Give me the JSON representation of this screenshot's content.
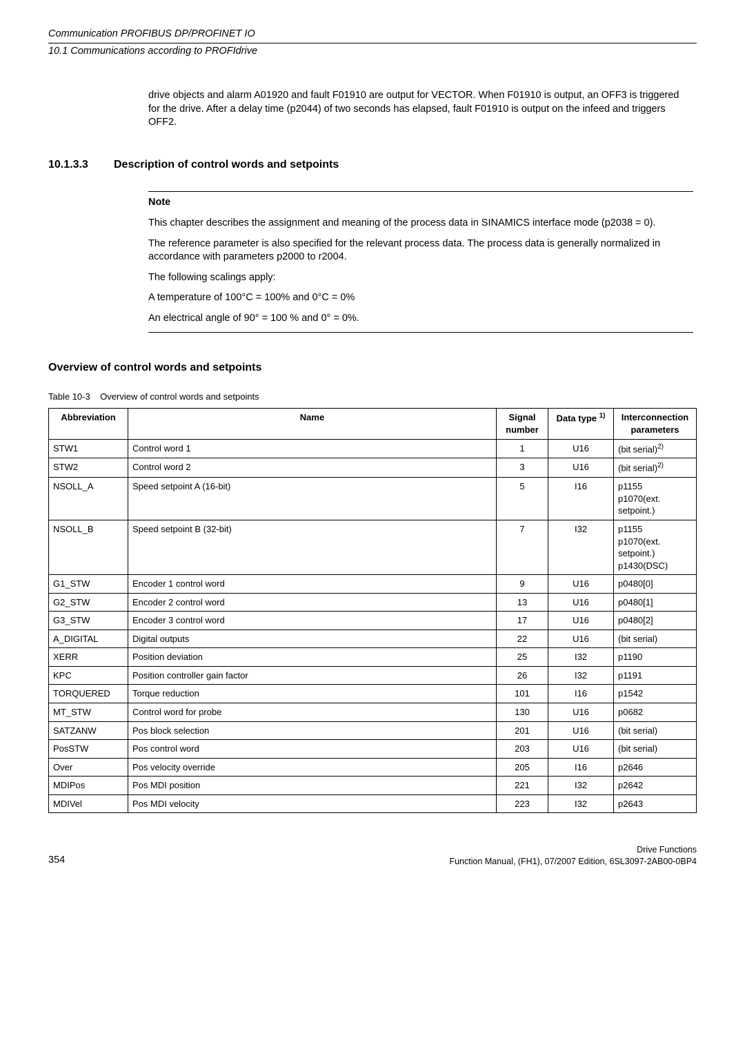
{
  "header": {
    "title": "Communication PROFIBUS DP/PROFINET IO",
    "subtitle": "10.1 Communications according to PROFIdrive"
  },
  "intro_para": "drive objects and alarm A01920 and fault F01910 are output for VECTOR. When F01910 is output, an OFF3 is triggered for the drive. After a delay time (p2044) of two seconds has elapsed, fault F01910 is output on the infeed and triggers OFF2.",
  "section": {
    "number": "10.1.3.3",
    "title": "Description of control words and setpoints"
  },
  "note": {
    "label": "Note",
    "p1": "This chapter describes the assignment and meaning of the process data in SINAMICS interface mode (p2038 = 0).",
    "p2": "The reference parameter is also specified for the relevant process data. The process data is generally normalized in accordance with parameters p2000 to r2004.",
    "p3": "The following scalings apply:",
    "p4": "A temperature of 100°C = 100% and 0°C = 0%",
    "p5": "An electrical angle of 90° = 100 % and 0° = 0%."
  },
  "overview_heading": "Overview of control words and setpoints",
  "table": {
    "caption_prefix": "Table 10-3",
    "caption_text": "Overview of control words and setpoints",
    "headers": {
      "abbr": "Abbreviation",
      "name": "Name",
      "signal": "Signal number",
      "dtype_pre": "Data type ",
      "dtype_sup": "1)",
      "inter": "Interconnection parameters"
    },
    "rows": [
      {
        "abbr": "STW1",
        "name": "Control word 1",
        "sig": "1",
        "dt": "U16",
        "ip": "(bit serial)",
        "ip_sup": "2)"
      },
      {
        "abbr": "STW2",
        "name": "Control word 2",
        "sig": "3",
        "dt": "U16",
        "ip": "(bit serial)",
        "ip_sup": "2)"
      },
      {
        "abbr": "NSOLL_A",
        "name": "Speed setpoint A (16-bit)",
        "sig": "5",
        "dt": "I16",
        "ip": "p1155\np1070(ext. setpoint.)"
      },
      {
        "abbr": "NSOLL_B",
        "name": "Speed setpoint B (32-bit)",
        "sig": "7",
        "dt": "I32",
        "ip": "p1155\np1070(ext. setpoint.)\np1430(DSC)"
      },
      {
        "abbr": "G1_STW",
        "name": "Encoder 1 control word",
        "sig": "9",
        "dt": "U16",
        "ip": "p0480[0]"
      },
      {
        "abbr": "G2_STW",
        "name": "Encoder 2 control word",
        "sig": "13",
        "dt": "U16",
        "ip": "p0480[1]"
      },
      {
        "abbr": "G3_STW",
        "name": "Encoder 3 control word",
        "sig": "17",
        "dt": "U16",
        "ip": "p0480[2]"
      },
      {
        "abbr": "A_DIGITAL",
        "name": "Digital outputs",
        "sig": "22",
        "dt": "U16",
        "ip": "(bit serial)"
      },
      {
        "abbr": "XERR",
        "name": "Position deviation",
        "sig": "25",
        "dt": "I32",
        "ip": "p1190"
      },
      {
        "abbr": "KPC",
        "name": "Position controller gain factor",
        "sig": "26",
        "dt": "I32",
        "ip": "p1191"
      },
      {
        "abbr": "TORQUERED",
        "name": "Torque reduction",
        "sig": "101",
        "dt": "I16",
        "ip": "p1542"
      },
      {
        "abbr": "MT_STW",
        "name": "Control word for probe",
        "sig": "130",
        "dt": "U16",
        "ip": "p0682"
      },
      {
        "abbr": "SATZANW",
        "name": "Pos block selection",
        "sig": "201",
        "dt": "U16",
        "ip": "(bit serial)"
      },
      {
        "abbr": "PosSTW",
        "name": "Pos control word",
        "sig": "203",
        "dt": "U16",
        "ip": "(bit serial)"
      },
      {
        "abbr": "Over",
        "name": "Pos velocity override",
        "sig": "205",
        "dt": "I16",
        "ip": "p2646"
      },
      {
        "abbr": "MDIPos",
        "name": "Pos MDI position",
        "sig": "221",
        "dt": "I32",
        "ip": "p2642"
      },
      {
        "abbr": "MDIVel",
        "name": "Pos MDI velocity",
        "sig": "223",
        "dt": "I32",
        "ip": "p2643"
      }
    ]
  },
  "footer": {
    "page": "354",
    "right1": "Drive Functions",
    "right2": "Function Manual, (FH1), 07/2007 Edition, 6SL3097-2AB00-0BP4"
  }
}
